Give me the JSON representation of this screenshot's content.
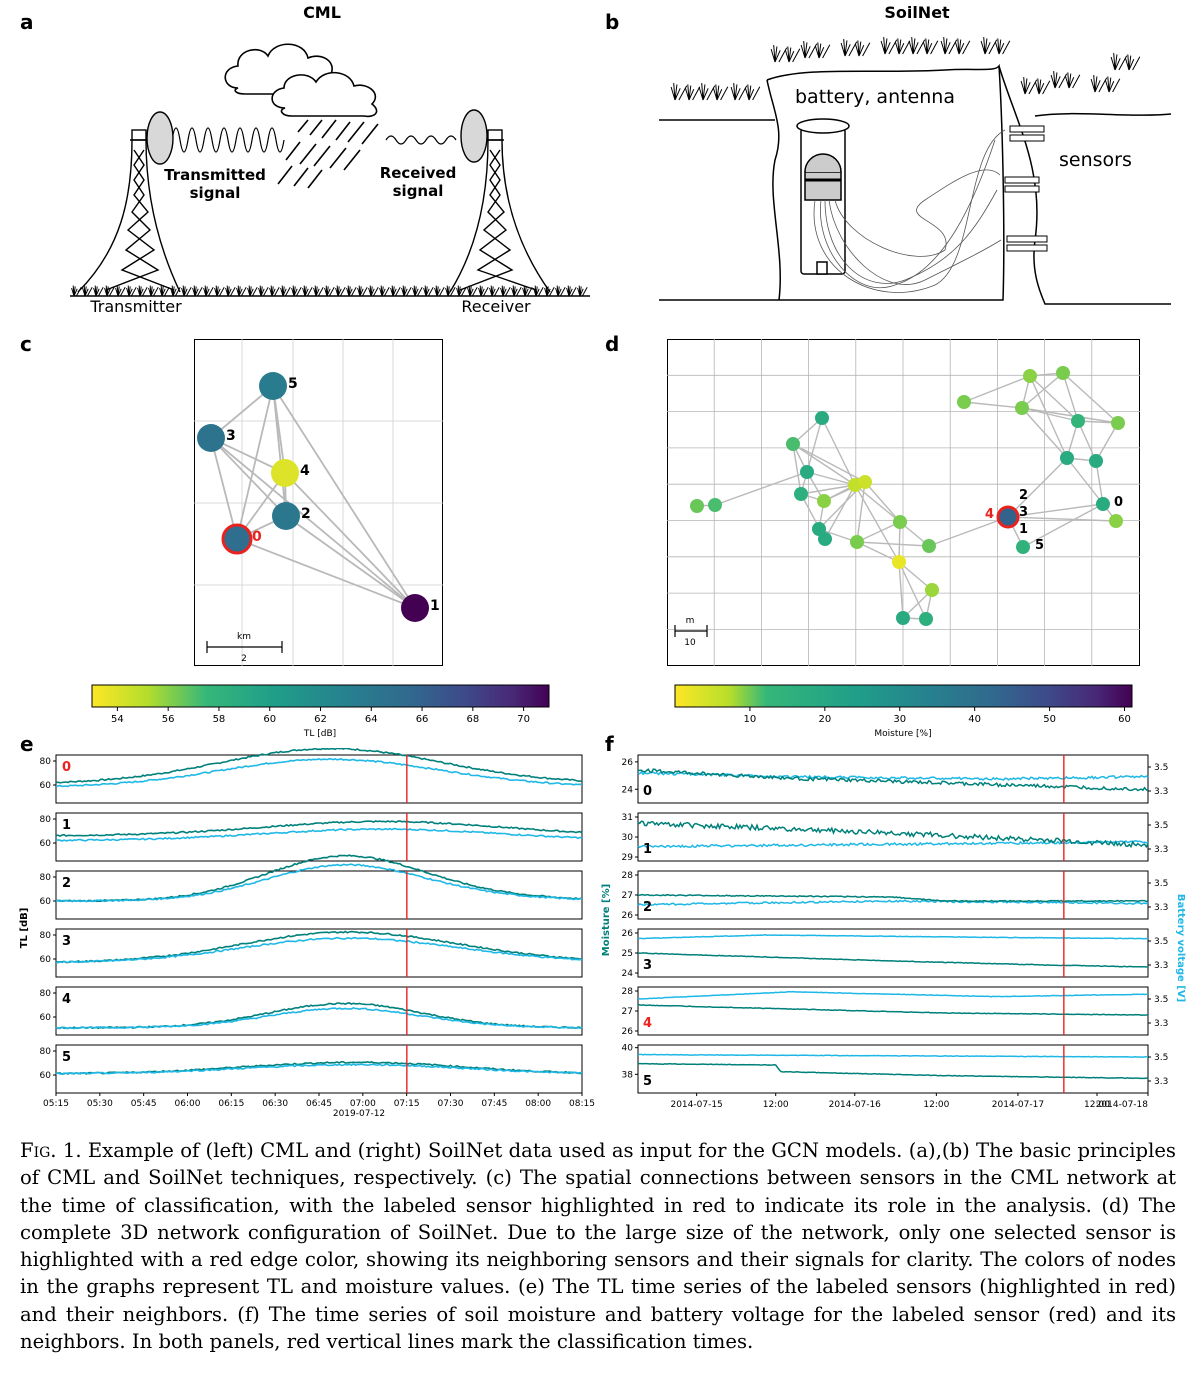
{
  "panels": {
    "a": {
      "letter": "a",
      "title": "CML",
      "transmitted": [
        "Transmitted",
        "signal"
      ],
      "received": [
        "Received",
        "signal"
      ],
      "transmitter": "Transmitter",
      "receiver": "Receiver"
    },
    "b": {
      "letter": "b",
      "title": "SoilNet",
      "battery": "battery, antenna",
      "sensors": "sensors"
    },
    "c": {
      "letter": "c",
      "scale_unit": "km",
      "scale_value": "2",
      "nodes": [
        {
          "id": "0",
          "tl": 65.0,
          "highlight": true
        },
        {
          "id": "1",
          "tl": 71.0
        },
        {
          "id": "2",
          "tl": 64.0
        },
        {
          "id": "3",
          "tl": 64.5
        },
        {
          "id": "4",
          "tl": 54.0
        },
        {
          "id": "5",
          "tl": 63.5
        }
      ],
      "colorbar": {
        "label": "TL [dB]",
        "min": 53,
        "max": 71,
        "ticks": [
          "54",
          "56",
          "58",
          "60",
          "62",
          "64",
          "66",
          "68",
          "70"
        ]
      }
    },
    "d": {
      "letter": "d",
      "scale_unit": "m",
      "scale_value": "10",
      "labels": [
        "0",
        "1",
        "2",
        "3",
        "4",
        "5"
      ],
      "colorbar": {
        "label": "Moisture [%]",
        "min": 0,
        "max": 61,
        "ticks": [
          "10",
          "20",
          "30",
          "40",
          "50",
          "60"
        ]
      }
    },
    "e": {
      "letter": "e",
      "ylabel": "TL [dB]",
      "rows": [
        "0",
        "1",
        "2",
        "3",
        "4",
        "5"
      ],
      "yticks": [
        "80",
        "60"
      ],
      "xticks": [
        "05:15",
        "05:30",
        "05:45",
        "06:00",
        "06:15",
        "06:30",
        "06:45",
        "07:00",
        "07:15",
        "07:30",
        "07:45",
        "08:00",
        "08:15"
      ],
      "date": "2019-07-12"
    },
    "f": {
      "letter": "f",
      "ylabel_left": "Moisture [%]",
      "ylabel_right": "Battery voltage [V]",
      "rows": [
        {
          "id": "0",
          "left_ticks": [
            "26",
            "24"
          ],
          "right_ticks": [
            "3.5",
            "3.3"
          ]
        },
        {
          "id": "1",
          "left_ticks": [
            "31",
            "30",
            "29"
          ],
          "right_ticks": [
            "3.5",
            "3.3"
          ]
        },
        {
          "id": "2",
          "left_ticks": [
            "28",
            "27",
            "26"
          ],
          "right_ticks": [
            "3.5",
            "3.3"
          ]
        },
        {
          "id": "3",
          "left_ticks": [
            "26",
            "25",
            "24"
          ],
          "right_ticks": [
            "3.5",
            "3.3"
          ]
        },
        {
          "id": "4",
          "left_ticks": [
            "28",
            "27",
            "26"
          ],
          "right_ticks": [
            "3.5",
            "3.3"
          ]
        },
        {
          "id": "5",
          "left_ticks": [
            "40",
            "38"
          ],
          "right_ticks": [
            "3.5",
            "3.3"
          ]
        }
      ],
      "xticks": [
        "2014-07-15",
        "12:00",
        "2014-07-16",
        "12:00",
        "2014-07-17",
        "12:00",
        "2014-07-18"
      ]
    }
  },
  "caption": {
    "fig": "Fig. 1.",
    "text": " Example of (left) CML and (right) SoilNet data used as input for the GCN models. (a),(b) The basic principles of CML and SoilNet techniques, respectively. (c) The spatial connections between sensors in the CML network at the time of classification, with the labeled sensor highlighted in red to indicate its role in the analysis. (d) The complete 3D network configuration of SoilNet. Due to the large size of the network, only one selected sensor is highlighted with a red edge color, showing its neighboring sensors and their signals for clarity. The colors of nodes in the graphs represent TL and moisture values. (e) The TL time series of the labeled sensors (highlighted in red) and their neighbors. (f) The time series of soil moisture and battery voltage for the labeled sensor (red) and its neighbors. In both panels, red vertical lines mark the classification times."
  },
  "colors": {
    "teal": "#00807a",
    "cyan": "#1fb8e6",
    "red": "#e8231f",
    "grid": "#b5b5b5",
    "edge": "#b9b9b9"
  }
}
